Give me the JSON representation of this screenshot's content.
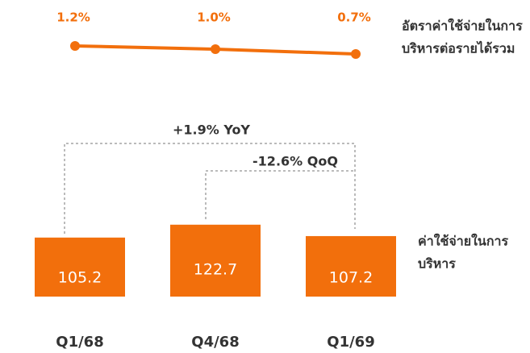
{
  "chart_data": [
    {
      "type": "line",
      "categories": [
        "Q1/68",
        "Q4/68",
        "Q1/69"
      ],
      "values": [
        1.2,
        1.0,
        0.7
      ],
      "value_labels": [
        "1.2%",
        "1.0%",
        "0.7%"
      ],
      "color": "#f26f0c",
      "ylim": [
        0.5,
        1.5
      ],
      "label": [
        "อัตราค่าใช้จ่ายในการ",
        "บริหารต่อรายได้รวม"
      ]
    },
    {
      "type": "bar",
      "categories": [
        "Q1/68",
        "Q4/68",
        "Q1/69"
      ],
      "values": [
        105.2,
        122.7,
        107.2
      ],
      "color": "#f26f0c",
      "ylim": [
        25,
        140
      ],
      "annotations": [
        "+1.9% YoY",
        "-12.6% QoQ"
      ],
      "label": [
        "ค่าใช้จ่ายในการ",
        "บริหาร"
      ]
    }
  ]
}
